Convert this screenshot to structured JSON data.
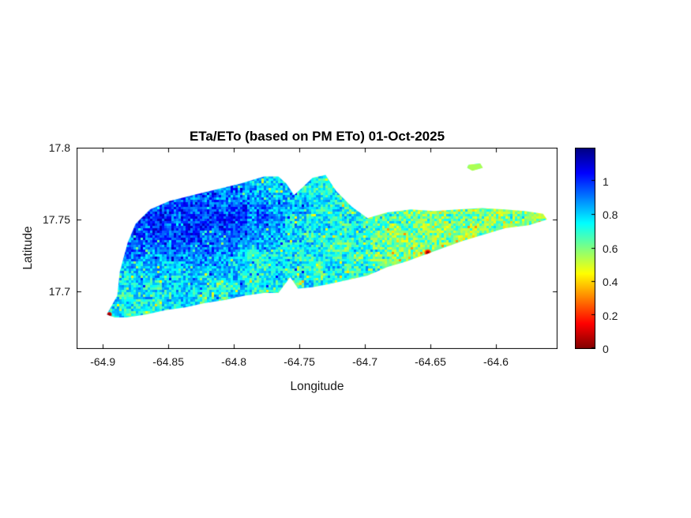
{
  "window": {
    "background": "#ffffff"
  },
  "chart_data": {
    "type": "heatmap",
    "title": "ETa/ETo (based on PM ETo) 01-Oct-2025",
    "xlabel": "Longitude",
    "ylabel": "Latitude",
    "xlim": [
      -64.92,
      -64.553
    ],
    "ylim": [
      17.66,
      17.8
    ],
    "xticks": [
      -64.9,
      -64.85,
      -64.8,
      -64.75,
      -64.7,
      -64.65,
      -64.6
    ],
    "xtick_labels": [
      "-64.9",
      "-64.85",
      "-64.8",
      "-64.75",
      "-64.7",
      "-64.65",
      "-64.6"
    ],
    "yticks": [
      17.7,
      17.75,
      17.8
    ],
    "ytick_labels": [
      "17.7",
      "17.75",
      "17.8"
    ],
    "grid": false,
    "legend": "none",
    "colorbar": {
      "position": "right",
      "clim": [
        0,
        1.2
      ],
      "ticks": [
        0,
        0.2,
        0.4,
        0.6,
        0.8,
        1
      ],
      "tick_labels": [
        "0",
        "0.2",
        "0.4",
        "0.6",
        "0.8",
        "1"
      ],
      "colormap": "jet-reversed (0 = dark red, 1.2 = dark blue)"
    },
    "island_outline": [
      [
        -64.897,
        17.684
      ],
      [
        -64.889,
        17.697
      ],
      [
        -64.887,
        17.714
      ],
      [
        -64.881,
        17.734
      ],
      [
        -64.875,
        17.747
      ],
      [
        -64.864,
        17.757
      ],
      [
        -64.849,
        17.763
      ],
      [
        -64.831,
        17.767
      ],
      [
        -64.813,
        17.771
      ],
      [
        -64.795,
        17.775
      ],
      [
        -64.777,
        17.78
      ],
      [
        -64.766,
        17.78
      ],
      [
        -64.76,
        17.775
      ],
      [
        -64.754,
        17.767
      ],
      [
        -64.748,
        17.772
      ],
      [
        -64.74,
        17.779
      ],
      [
        -64.73,
        17.781
      ],
      [
        -64.722,
        17.77
      ],
      [
        -64.71,
        17.759
      ],
      [
        -64.698,
        17.751
      ],
      [
        -64.683,
        17.755
      ],
      [
        -64.665,
        17.757
      ],
      [
        -64.647,
        17.756
      ],
      [
        -64.629,
        17.757
      ],
      [
        -64.611,
        17.758
      ],
      [
        -64.593,
        17.757
      ],
      [
        -64.578,
        17.756
      ],
      [
        -64.564,
        17.754
      ],
      [
        -64.561,
        17.75
      ],
      [
        -64.575,
        17.746
      ],
      [
        -64.593,
        17.744
      ],
      [
        -64.611,
        17.739
      ],
      [
        -64.626,
        17.735
      ],
      [
        -64.641,
        17.73
      ],
      [
        -64.653,
        17.726
      ],
      [
        -64.668,
        17.721
      ],
      [
        -64.683,
        17.717
      ],
      [
        -64.698,
        17.711
      ],
      [
        -64.713,
        17.708
      ],
      [
        -64.728,
        17.705
      ],
      [
        -64.74,
        17.703
      ],
      [
        -64.751,
        17.702
      ],
      [
        -64.757,
        17.71
      ],
      [
        -64.766,
        17.699
      ],
      [
        -64.777,
        17.699
      ],
      [
        -64.792,
        17.697
      ],
      [
        -64.807,
        17.694
      ],
      [
        -64.822,
        17.692
      ],
      [
        -64.837,
        17.689
      ],
      [
        -64.852,
        17.687
      ],
      [
        -64.867,
        17.684
      ],
      [
        -64.882,
        17.682
      ],
      [
        -64.891,
        17.682
      ]
    ],
    "islet_outline": [
      [
        -64.621,
        17.788
      ],
      [
        -64.612,
        17.789
      ],
      [
        -64.61,
        17.786
      ],
      [
        -64.618,
        17.784
      ],
      [
        -64.622,
        17.786
      ]
    ],
    "low_value_spots": [
      {
        "lon": -64.895,
        "lat": 17.684,
        "value": 0.08
      },
      {
        "lon": -64.652,
        "lat": 17.727,
        "value": 0.1
      }
    ],
    "value_field_summary": {
      "dominant_value": 0.75,
      "typical_range": [
        0.5,
        1.05
      ],
      "high_region": "northwest interior, values ~0.9-1.1 (blue)",
      "low_region": "eastern half speckled ~0.5-0.75 (cyan/green/yellow)"
    }
  }
}
